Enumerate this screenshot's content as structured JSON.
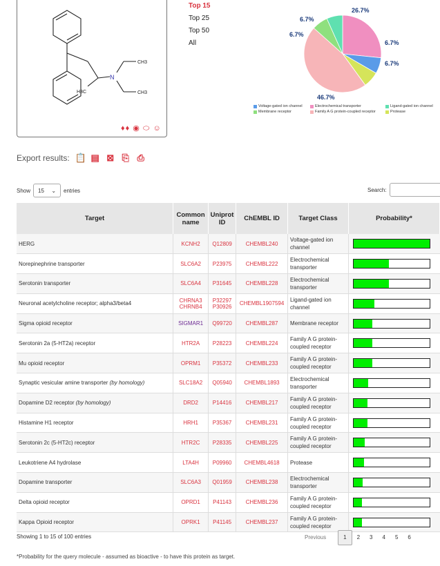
{
  "molecule": {
    "labels": {
      "n": "N",
      "ch3_a": "CH3",
      "ch3_b": "CH3",
      "h3c": "H3C"
    },
    "tool_icons": [
      "person-icon",
      "eye-icon",
      "pill-icon",
      "smiley-icon"
    ]
  },
  "top_menu": [
    {
      "label": "Top 15",
      "active": true
    },
    {
      "label": "Top 25",
      "active": false
    },
    {
      "label": "Top 50",
      "active": false
    },
    {
      "label": "All",
      "active": false
    }
  ],
  "chart_data": {
    "type": "pie",
    "slices": [
      {
        "name": "Electrochemical transporter",
        "value": 26.7,
        "label": "26.7%",
        "color": "#f08fc0"
      },
      {
        "name": "Voltage-gated ion channel",
        "value": 6.7,
        "label": "6.7%",
        "color": "#5a9be8"
      },
      {
        "name": "Protease",
        "value": 6.7,
        "label": "6.7%",
        "color": "#d5e45a"
      },
      {
        "name": "Family A G protein-coupled receptor",
        "value": 46.7,
        "label": "46.7%",
        "color": "#f7b5b8"
      },
      {
        "name": "Membrane receptor",
        "value": 6.7,
        "label": "6.7%",
        "color": "#8fe07e"
      },
      {
        "name": "Ligand-gated ion channel",
        "value": 6.7,
        "label": "6.7%",
        "color": "#5fe0b0"
      }
    ],
    "legend": [
      "Voltage-gated ion channel",
      "Electrochemical transporter",
      "Ligand-gated ion channel",
      "Membrane receptor",
      "Family A G protein-coupled receptor",
      "Protease"
    ]
  },
  "export": {
    "label": "Export results:"
  },
  "show": {
    "prefix": "Show",
    "value": "15",
    "suffix": "entries"
  },
  "search": {
    "label": "Search:"
  },
  "table": {
    "headers": [
      "Target",
      "Common name",
      "Uniprot ID",
      "ChEMBL ID",
      "Target Class",
      "Probability*"
    ],
    "rows": [
      {
        "target": "HERG",
        "hom": "",
        "common": "KCNH2",
        "uniprot": "Q12809",
        "chembl": "CHEMBL240",
        "cls": "Voltage-gated ion channel",
        "prob": 1.0,
        "purple": false
      },
      {
        "target": "Norepinephrine transporter",
        "hom": "",
        "common": "SLC6A2",
        "uniprot": "P23975",
        "chembl": "CHEMBL222",
        "cls": "Electrochemical transporter",
        "prob": 0.46,
        "purple": false
      },
      {
        "target": "Serotonin transporter",
        "hom": "",
        "common": "SLC6A4",
        "uniprot": "P31645",
        "chembl": "CHEMBL228",
        "cls": "Electrochemical transporter",
        "prob": 0.46,
        "purple": false
      },
      {
        "target": "Neuronal acetylcholine receptor; alpha3/beta4",
        "hom": "",
        "common": "CHRNA3 CHRNB4",
        "uniprot": "P32297 P30926",
        "chembl": "CHEMBL1907594",
        "cls": "Ligand-gated ion channel",
        "prob": 0.27,
        "purple": false
      },
      {
        "target": "Sigma opioid receptor",
        "hom": "",
        "common": "SIGMAR1",
        "uniprot": "Q99720",
        "chembl": "CHEMBL287",
        "cls": "Membrane receptor",
        "prob": 0.25,
        "purple": true
      },
      {
        "target": "Serotonin 2a (5-HT2a) receptor",
        "hom": "",
        "common": "HTR2A",
        "uniprot": "P28223",
        "chembl": "CHEMBL224",
        "cls": "Family A G protein-coupled receptor",
        "prob": 0.25,
        "purple": false
      },
      {
        "target": "Mu opioid receptor",
        "hom": "",
        "common": "OPRM1",
        "uniprot": "P35372",
        "chembl": "CHEMBL233",
        "cls": "Family A G protein-coupled receptor",
        "prob": 0.25,
        "purple": false
      },
      {
        "target": "Synaptic vesicular amine transporter",
        "hom": "(by homology)",
        "common": "SLC18A2",
        "uniprot": "Q05940",
        "chembl": "CHEMBL1893",
        "cls": "Electrochemical transporter",
        "prob": 0.19,
        "purple": false
      },
      {
        "target": "Dopamine D2 receptor",
        "hom": "(by homology)",
        "common": "DRD2",
        "uniprot": "P14416",
        "chembl": "CHEMBL217",
        "cls": "Family A G protein-coupled receptor",
        "prob": 0.18,
        "purple": false
      },
      {
        "target": "Histamine H1 receptor",
        "hom": "",
        "common": "HRH1",
        "uniprot": "P35367",
        "chembl": "CHEMBL231",
        "cls": "Family A G protein-coupled receptor",
        "prob": 0.18,
        "purple": false
      },
      {
        "target": "Serotonin 2c (5-HT2c) receptor",
        "hom": "",
        "common": "HTR2C",
        "uniprot": "P28335",
        "chembl": "CHEMBL225",
        "cls": "Family A G protein-coupled receptor",
        "prob": 0.15,
        "purple": false
      },
      {
        "target": "Leukotriene A4 hydrolase",
        "hom": "",
        "common": "LTA4H",
        "uniprot": "P09960",
        "chembl": "CHEMBL4618",
        "cls": "Protease",
        "prob": 0.14,
        "purple": false
      },
      {
        "target": "Dopamine transporter",
        "hom": "",
        "common": "SLC6A3",
        "uniprot": "Q01959",
        "chembl": "CHEMBL238",
        "cls": "Electrochemical transporter",
        "prob": 0.12,
        "purple": false
      },
      {
        "target": "Delta opioid receptor",
        "hom": "",
        "common": "OPRD1",
        "uniprot": "P41143",
        "chembl": "CHEMBL236",
        "cls": "Family A G protein-coupled receptor",
        "prob": 0.11,
        "purple": false
      },
      {
        "target": "Kappa Opioid receptor",
        "hom": "",
        "common": "OPRK1",
        "uniprot": "P41145",
        "chembl": "CHEMBL237",
        "cls": "Family A G protein-coupled receptor",
        "prob": 0.11,
        "purple": false
      }
    ]
  },
  "footer": {
    "showing": "Showing 1 to 15 of 100 entries"
  },
  "pagination": {
    "previous": "Previous",
    "pages": [
      "1",
      "2",
      "3",
      "4",
      "5",
      "6"
    ],
    "current": "1"
  },
  "note": "*Probability for the query molecule - assumed as bioactive - to have this protein as target."
}
